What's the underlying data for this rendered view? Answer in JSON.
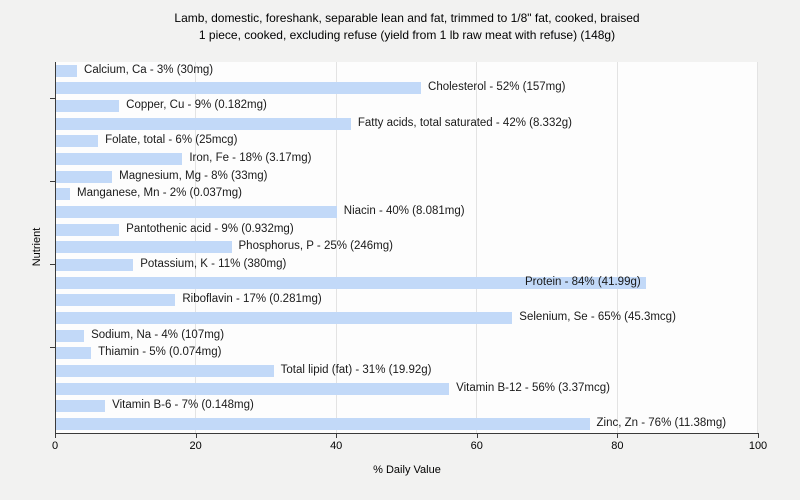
{
  "title": {
    "line1": "Lamb, domestic, foreshank, separable lean and fat, trimmed to 1/8\" fat, cooked, braised",
    "line2": "1 piece, cooked, excluding refuse (yield from 1 lb raw meat with refuse) (148g)"
  },
  "colors": {
    "bar": "#c2d9f8",
    "figure_background": "#f2f2f1",
    "plot_background": "#fdfdfd",
    "gridline": "#e3e3e3",
    "axis": "#3a3a3a",
    "text": "#1a1a1a"
  },
  "chart_data": {
    "type": "bar",
    "orientation": "horizontal",
    "xlabel": "% Daily Value",
    "ylabel": "Nutrient",
    "xlim": [
      0,
      100
    ],
    "x_ticks": [
      0,
      20,
      40,
      60,
      80,
      100
    ],
    "grid": true,
    "legend": false,
    "bars": [
      {
        "nutrient": "Calcium, Ca",
        "percent": 3,
        "amount": "30mg",
        "label": "Calcium, Ca - 3% (30mg)"
      },
      {
        "nutrient": "Cholesterol",
        "percent": 52,
        "amount": "157mg",
        "label": "Cholesterol - 52% (157mg)"
      },
      {
        "nutrient": "Copper, Cu",
        "percent": 9,
        "amount": "0.182mg",
        "label": "Copper, Cu - 9% (0.182mg)"
      },
      {
        "nutrient": "Fatty acids, total saturated",
        "percent": 42,
        "amount": "8.332g",
        "label": "Fatty acids, total saturated - 42% (8.332g)"
      },
      {
        "nutrient": "Folate, total",
        "percent": 6,
        "amount": "25mcg",
        "label": "Folate, total - 6% (25mcg)"
      },
      {
        "nutrient": "Iron, Fe",
        "percent": 18,
        "amount": "3.17mg",
        "label": "Iron, Fe - 18% (3.17mg)"
      },
      {
        "nutrient": "Magnesium, Mg",
        "percent": 8,
        "amount": "33mg",
        "label": "Magnesium, Mg - 8% (33mg)"
      },
      {
        "nutrient": "Manganese, Mn",
        "percent": 2,
        "amount": "0.037mg",
        "label": "Manganese, Mn - 2% (0.037mg)"
      },
      {
        "nutrient": "Niacin",
        "percent": 40,
        "amount": "8.081mg",
        "label": "Niacin - 40% (8.081mg)"
      },
      {
        "nutrient": "Pantothenic acid",
        "percent": 9,
        "amount": "0.932mg",
        "label": "Pantothenic acid - 9% (0.932mg)"
      },
      {
        "nutrient": "Phosphorus, P",
        "percent": 25,
        "amount": "246mg",
        "label": "Phosphorus, P - 25% (246mg)"
      },
      {
        "nutrient": "Potassium, K",
        "percent": 11,
        "amount": "380mg",
        "label": "Potassium, K - 11% (380mg)"
      },
      {
        "nutrient": "Protein",
        "percent": 84,
        "amount": "41.99g",
        "label": "Protein - 84% (41.99g)"
      },
      {
        "nutrient": "Riboflavin",
        "percent": 17,
        "amount": "0.281mg",
        "label": "Riboflavin - 17% (0.281mg)"
      },
      {
        "nutrient": "Selenium, Se",
        "percent": 65,
        "amount": "45.3mcg",
        "label": "Selenium, Se - 65% (45.3mcg)"
      },
      {
        "nutrient": "Sodium, Na",
        "percent": 4,
        "amount": "107mg",
        "label": "Sodium, Na - 4% (107mg)"
      },
      {
        "nutrient": "Thiamin",
        "percent": 5,
        "amount": "0.074mg",
        "label": "Thiamin - 5% (0.074mg)"
      },
      {
        "nutrient": "Total lipid (fat)",
        "percent": 31,
        "amount": "19.92g",
        "label": "Total lipid (fat) - 31% (19.92g)"
      },
      {
        "nutrient": "Vitamin B-12",
        "percent": 56,
        "amount": "3.37mcg",
        "label": "Vitamin B-12 - 56% (3.37mcg)"
      },
      {
        "nutrient": "Vitamin B-6",
        "percent": 7,
        "amount": "0.148mg",
        "label": "Vitamin B-6 - 7% (0.148mg)"
      },
      {
        "nutrient": "Zinc, Zn",
        "percent": 76,
        "amount": "11.38mg",
        "label": "Zinc, Zn - 76% (11.38mg)"
      }
    ]
  }
}
